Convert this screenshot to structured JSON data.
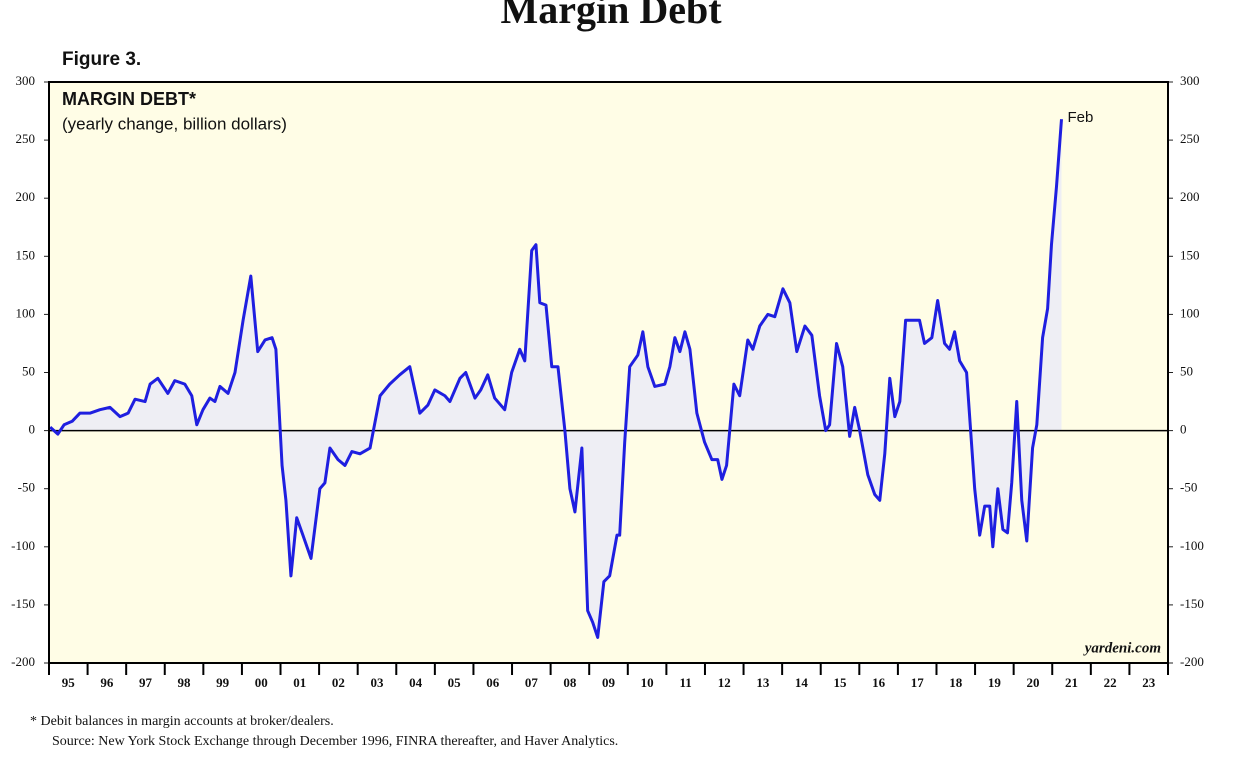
{
  "chart_data": {
    "type": "line",
    "page_title": "Margin Debt",
    "figure_label": "Figure 3.",
    "title": "MARGIN DEBT*",
    "subtitle": "(yearly change, billion dollars)",
    "annotation": "Feb",
    "watermark": "yardeni.com",
    "footnote": "*  Debit balances in margin accounts at broker/dealers.",
    "source": "Source: New York Stock Exchange through December 1996, FINRA thereafter, and Haver Analytics.",
    "series": [
      {
        "name": "Margin debt",
        "color": "#1f1fe0",
        "x": [
          1995.03,
          1995.23,
          1995.39,
          1995.6,
          1995.8,
          1996.06,
          1996.32,
          1996.58,
          1996.84,
          1997.05,
          1997.23,
          1997.49,
          1997.62,
          1997.82,
          1998.08,
          1998.26,
          1998.52,
          1998.7,
          1998.83,
          1998.99,
          1999.17,
          1999.3,
          1999.43,
          1999.64,
          1999.82,
          2000.03,
          2000.23,
          2000.41,
          2000.6,
          2000.78,
          2000.88,
          2001.04,
          2001.14,
          2001.27,
          2001.42,
          2001.58,
          2001.79,
          2002.02,
          2002.15,
          2002.28,
          2002.49,
          2002.67,
          2002.85,
          2003.06,
          2003.32,
          2003.58,
          2003.83,
          2004.09,
          2004.35,
          2004.61,
          2004.82,
          2005.0,
          2005.26,
          2005.39,
          2005.65,
          2005.8,
          2006.04,
          2006.19,
          2006.37,
          2006.55,
          2006.81,
          2006.99,
          2007.2,
          2007.33,
          2007.51,
          2007.62,
          2007.72,
          2007.88,
          2008.03,
          2008.19,
          2008.37,
          2008.5,
          2008.63,
          2008.81,
          2008.96,
          2009.09,
          2009.22,
          2009.38,
          2009.53,
          2009.72,
          2009.79,
          2009.92,
          2010.05,
          2010.26,
          2010.39,
          2010.52,
          2010.7,
          2010.96,
          2011.09,
          2011.22,
          2011.35,
          2011.48,
          2011.61,
          2011.79,
          2011.99,
          2012.18,
          2012.33,
          2012.44,
          2012.56,
          2012.75,
          2012.9,
          2013.11,
          2013.24,
          2013.42,
          2013.63,
          2013.81,
          2014.02,
          2014.2,
          2014.38,
          2014.59,
          2014.77,
          2014.97,
          2015.13,
          2015.23,
          2015.41,
          2015.57,
          2015.75,
          2015.88,
          2016.01,
          2016.22,
          2016.4,
          2016.53,
          2016.66,
          2016.79,
          2016.92,
          2017.05,
          2017.2,
          2017.44,
          2017.56,
          2017.69,
          2017.88,
          2018.03,
          2018.21,
          2018.34,
          2018.47,
          2018.6,
          2018.78,
          2018.99,
          2019.12,
          2019.25,
          2019.38,
          2019.46,
          2019.59,
          2019.72,
          2019.84,
          2019.95,
          2020.08,
          2020.21,
          2020.34,
          2020.49,
          2020.6,
          2020.75,
          2020.88,
          2020.98,
          2021.11,
          2021.24
        ],
        "values": [
          3,
          -3,
          5,
          8,
          15,
          15,
          18,
          20,
          12,
          15,
          27,
          25,
          40,
          45,
          32,
          43,
          40,
          30,
          5,
          18,
          28,
          25,
          38,
          32,
          50,
          95,
          133,
          68,
          78,
          80,
          70,
          -30,
          -60,
          -125,
          -75,
          -90,
          -110,
          -50,
          -45,
          -15,
          -25,
          -30,
          -18,
          -20,
          -15,
          30,
          40,
          48,
          55,
          15,
          22,
          35,
          30,
          25,
          45,
          50,
          28,
          35,
          48,
          28,
          18,
          50,
          70,
          60,
          155,
          160,
          110,
          108,
          55,
          55,
          0,
          -50,
          -70,
          -15,
          -155,
          -165,
          -178,
          -130,
          -125,
          -90,
          -90,
          -10,
          55,
          65,
          85,
          55,
          38,
          40,
          55,
          80,
          68,
          85,
          70,
          15,
          -10,
          -25,
          -25,
          -42,
          -30,
          40,
          30,
          78,
          70,
          90,
          100,
          98,
          122,
          110,
          68,
          90,
          82,
          30,
          0,
          5,
          75,
          55,
          -5,
          20,
          0,
          -38,
          -55,
          -60,
          -20,
          45,
          12,
          25,
          95,
          95,
          95,
          75,
          80,
          112,
          75,
          70,
          85,
          60,
          50,
          -50,
          -90,
          -65,
          -65,
          -100,
          -50,
          -85,
          -88,
          -45,
          25,
          -60,
          -95,
          -15,
          5,
          80,
          105,
          160,
          210,
          268
        ]
      }
    ],
    "xlim": [
      1995,
      2024
    ],
    "xticks": [
      {
        "value": 1995.5,
        "label": "95"
      },
      {
        "value": 1996.5,
        "label": "96"
      },
      {
        "value": 1997.5,
        "label": "97"
      },
      {
        "value": 1998.5,
        "label": "98"
      },
      {
        "value": 1999.5,
        "label": "99"
      },
      {
        "value": 2000.5,
        "label": "00"
      },
      {
        "value": 2001.5,
        "label": "01"
      },
      {
        "value": 2002.5,
        "label": "02"
      },
      {
        "value": 2003.5,
        "label": "03"
      },
      {
        "value": 2004.5,
        "label": "04"
      },
      {
        "value": 2005.5,
        "label": "05"
      },
      {
        "value": 2006.5,
        "label": "06"
      },
      {
        "value": 2007.5,
        "label": "07"
      },
      {
        "value": 2008.5,
        "label": "08"
      },
      {
        "value": 2009.5,
        "label": "09"
      },
      {
        "value": 2010.5,
        "label": "10"
      },
      {
        "value": 2011.5,
        "label": "11"
      },
      {
        "value": 2012.5,
        "label": "12"
      },
      {
        "value": 2013.5,
        "label": "13"
      },
      {
        "value": 2014.5,
        "label": "14"
      },
      {
        "value": 2015.5,
        "label": "15"
      },
      {
        "value": 2016.5,
        "label": "16"
      },
      {
        "value": 2017.5,
        "label": "17"
      },
      {
        "value": 2018.5,
        "label": "18"
      },
      {
        "value": 2019.5,
        "label": "19"
      },
      {
        "value": 2020.5,
        "label": "20"
      },
      {
        "value": 2021.5,
        "label": "21"
      },
      {
        "value": 2022.5,
        "label": "22"
      },
      {
        "value": 2023.5,
        "label": "23"
      }
    ],
    "ylim": [
      -200,
      300
    ],
    "yticks": [
      -200,
      -150,
      -100,
      -50,
      0,
      50,
      100,
      150,
      200,
      250,
      300
    ],
    "background": "#fffde6",
    "fill_color": "#eeeef4"
  }
}
